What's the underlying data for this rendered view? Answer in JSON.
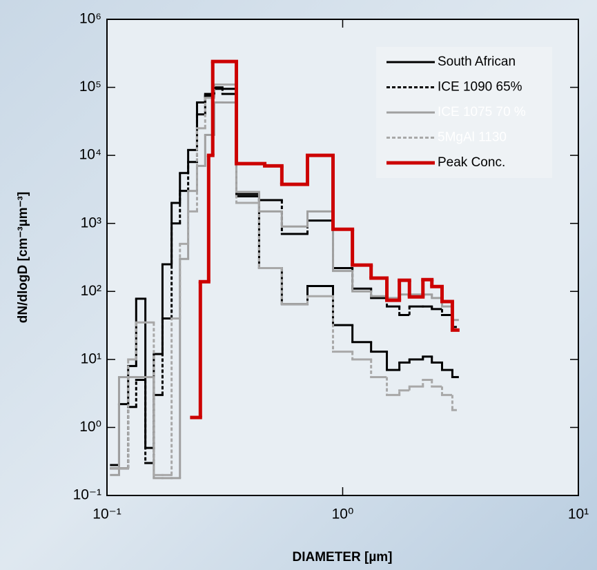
{
  "chart_data": {
    "type": "step",
    "xlabel": "DIAMETER [µm]",
    "ylabel": "dN/dlogD [cm⁻³µm⁻³]",
    "xscale": "log",
    "yscale": "log",
    "xlim": [
      0.1,
      10
    ],
    "ylim": [
      0.1,
      1000000
    ],
    "xticks": [
      {
        "value": 0.1,
        "label": "10⁻¹"
      },
      {
        "value": 1,
        "label": "10⁰"
      },
      {
        "value": 10,
        "label": "10¹"
      }
    ],
    "yticks": [
      {
        "value": 0.1,
        "label": "10⁻¹"
      },
      {
        "value": 1,
        "label": "10⁰"
      },
      {
        "value": 10,
        "label": "10¹"
      },
      {
        "value": 100,
        "label": "10²"
      },
      {
        "value": 1000,
        "label": "10³"
      },
      {
        "value": 10000,
        "label": "10⁴"
      },
      {
        "value": 100000,
        "label": "10⁵"
      },
      {
        "value": 1000000,
        "label": "10⁶"
      }
    ],
    "legend": "upper right",
    "series": [
      {
        "name": "South African",
        "color": "#000000",
        "dash": "solid",
        "width": 3,
        "bins": [
          0.104,
          0.1125,
          0.123,
          0.133,
          0.1455,
          0.158,
          0.172,
          0.188,
          0.204,
          0.221,
          0.241,
          0.261,
          0.285,
          0.309,
          0.354,
          0.442,
          0.552,
          0.709,
          0.91,
          1.1,
          1.32,
          1.54,
          1.74,
          1.92,
          2.19,
          2.39,
          2.64,
          2.92,
          3.08
        ],
        "values": [
          0.28,
          2.2,
          8,
          78,
          0.5,
          12,
          250,
          2000,
          5500,
          12000,
          60000,
          75000,
          95000,
          95000,
          2500,
          220,
          65,
          120,
          32,
          18,
          13,
          7,
          9,
          10,
          11,
          9,
          7,
          5.5
        ]
      },
      {
        "name": "ICE 1090 65%",
        "color": "#000000",
        "dash": "dotted",
        "width": 3,
        "bins": [
          0.104,
          0.1125,
          0.123,
          0.133,
          0.1455,
          0.158,
          0.172,
          0.188,
          0.204,
          0.221,
          0.241,
          0.261,
          0.285,
          0.309,
          0.354,
          0.442,
          0.552,
          0.709,
          0.91,
          1.1,
          1.32,
          1.54,
          1.74,
          1.92,
          2.19,
          2.39,
          2.64,
          2.92,
          3.08
        ],
        "values": [
          0.25,
          0.25,
          2,
          5,
          0.3,
          3,
          40,
          1000,
          3000,
          8000,
          40000,
          80000,
          100000,
          80000,
          2700,
          2200,
          700,
          1100,
          220,
          110,
          80,
          60,
          45,
          60,
          60,
          55,
          45,
          30
        ]
      },
      {
        "name": "ICE 1075 70 %",
        "color": "#a0a0a0",
        "dash": "solid",
        "width": 3,
        "bins": [
          0.104,
          0.1125,
          0.123,
          0.133,
          0.1455,
          0.158,
          0.172,
          0.188,
          0.204,
          0.221,
          0.241,
          0.261,
          0.285,
          0.309,
          0.354,
          0.442,
          0.552,
          0.709,
          0.91,
          1.1,
          1.32,
          1.54,
          1.74,
          1.92,
          2.19,
          2.39,
          2.64,
          2.92,
          3.08
        ],
        "values": [
          0.2,
          5.5,
          5.5,
          5.5,
          5.5,
          0.18,
          0.18,
          0.18,
          300,
          3000,
          7000,
          20000,
          60000,
          60000,
          2900,
          1500,
          900,
          1500,
          200,
          100,
          85,
          80,
          90,
          90,
          90,
          80,
          60,
          38
        ]
      },
      {
        "name": "5MgAl 1130",
        "color": "#a8a8a8",
        "dash": "dotted",
        "width": 3,
        "bins": [
          0.104,
          0.1125,
          0.123,
          0.133,
          0.1455,
          0.158,
          0.172,
          0.188,
          0.204,
          0.221,
          0.241,
          0.261,
          0.285,
          0.309,
          0.354,
          0.442,
          0.552,
          0.709,
          0.91,
          1.1,
          1.32,
          1.54,
          1.74,
          1.92,
          2.19,
          2.39,
          2.64,
          2.92,
          3.08
        ],
        "values": [
          0.25,
          0.25,
          10,
          35,
          35,
          0.2,
          0.2,
          40,
          500,
          1500,
          25000,
          70000,
          110000,
          110000,
          2000,
          220,
          65,
          85,
          13,
          10,
          5.5,
          3,
          3.5,
          4,
          5,
          4,
          3,
          1.8
        ]
      },
      {
        "name": "Peak Conc.",
        "color": "#cc0000",
        "dash": "solid",
        "width": 5,
        "bins": [
          0.229,
          0.249,
          0.27,
          0.281,
          0.354,
          0.467,
          0.552,
          0.709,
          0.91,
          1.1,
          1.32,
          1.54,
          1.74,
          1.92,
          2.19,
          2.39,
          2.64,
          2.92,
          3.08
        ],
        "values": [
          1.4,
          139,
          10000,
          240000,
          7550,
          7000,
          3750,
          10000,
          820,
          244,
          157,
          74,
          146,
          83,
          149,
          118,
          71,
          27
        ]
      }
    ]
  }
}
